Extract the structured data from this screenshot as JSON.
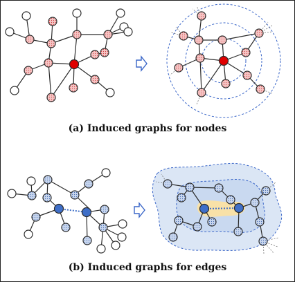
{
  "captions": {
    "a": "(a) Induced graphs for nodes",
    "b": "(b) Induced graphs for edges"
  },
  "colors": {
    "edge": "#2a2a2a",
    "node_fill_pink": "#f5c4c4",
    "node_fill_red": "#e00000",
    "node_fill_white": "#ffffff",
    "node_fill_blue": "#c8d6ee",
    "node_fill_darkblue": "#3f6fc8",
    "ring_dashed": "#3a66c8",
    "region_outer": "#dbe6f5",
    "region_inner": "#c9d9f0",
    "edge_highlight": "#f8e1a8",
    "arrow": "#3a66c8"
  },
  "icons": {
    "arrow": "hollow-right-arrow-icon"
  }
}
